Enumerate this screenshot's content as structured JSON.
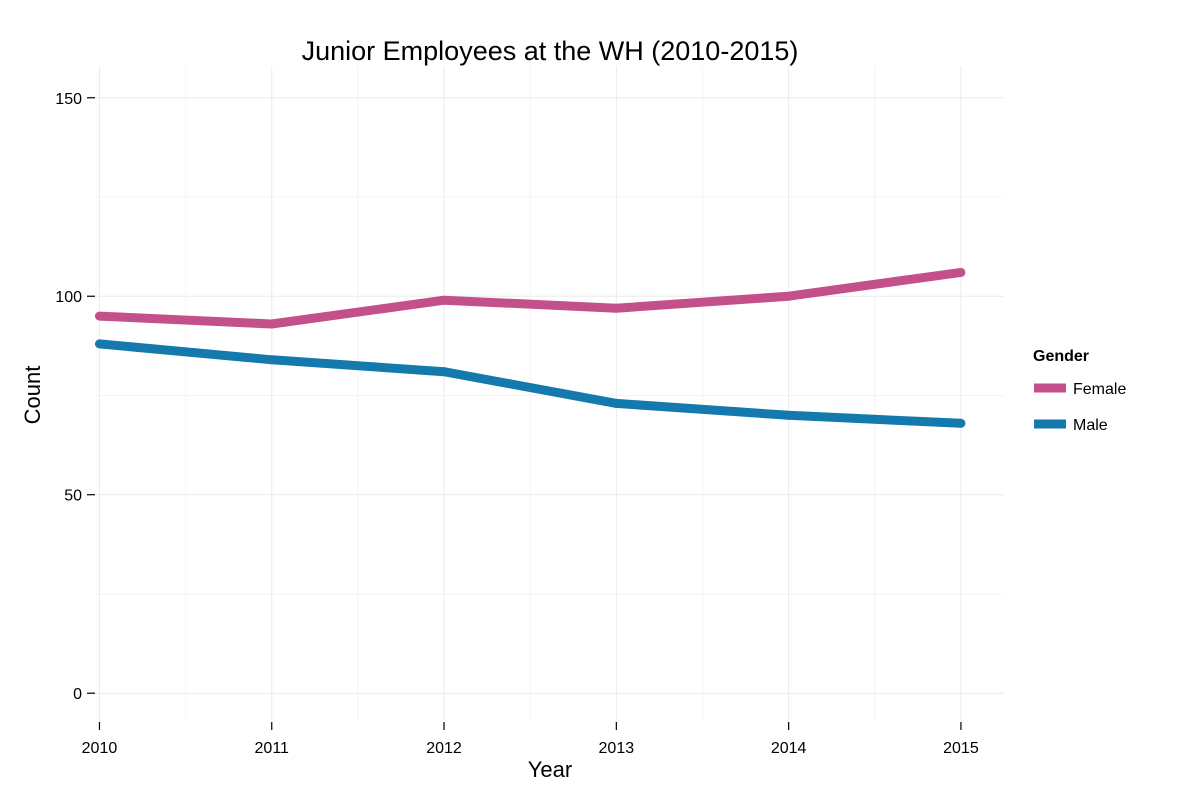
{
  "chart_data": {
    "type": "line",
    "title": "Junior Employees at the WH (2010-2015)",
    "xlabel": "Year",
    "ylabel": "Count",
    "x": [
      2010,
      2011,
      2012,
      2013,
      2014,
      2015
    ],
    "x_tick_labels": [
      "2010",
      "2011",
      "2012",
      "2013",
      "2014",
      "2015"
    ],
    "y_tick_values": [
      0,
      50,
      100,
      150
    ],
    "y_tick_labels": [
      "0",
      "50",
      "100",
      "150"
    ],
    "xlim": [
      2009.98,
      2015.25
    ],
    "ylim": [
      -7,
      158
    ],
    "grid": true,
    "legend": {
      "title": "Gender",
      "position": "right"
    },
    "series": [
      {
        "name": "Female",
        "color": "#c4508a",
        "values": [
          95,
          93,
          99,
          97,
          100,
          106
        ]
      },
      {
        "name": "Male",
        "color": "#1479ac",
        "values": [
          88,
          84,
          81,
          73,
          70,
          68
        ]
      }
    ]
  }
}
